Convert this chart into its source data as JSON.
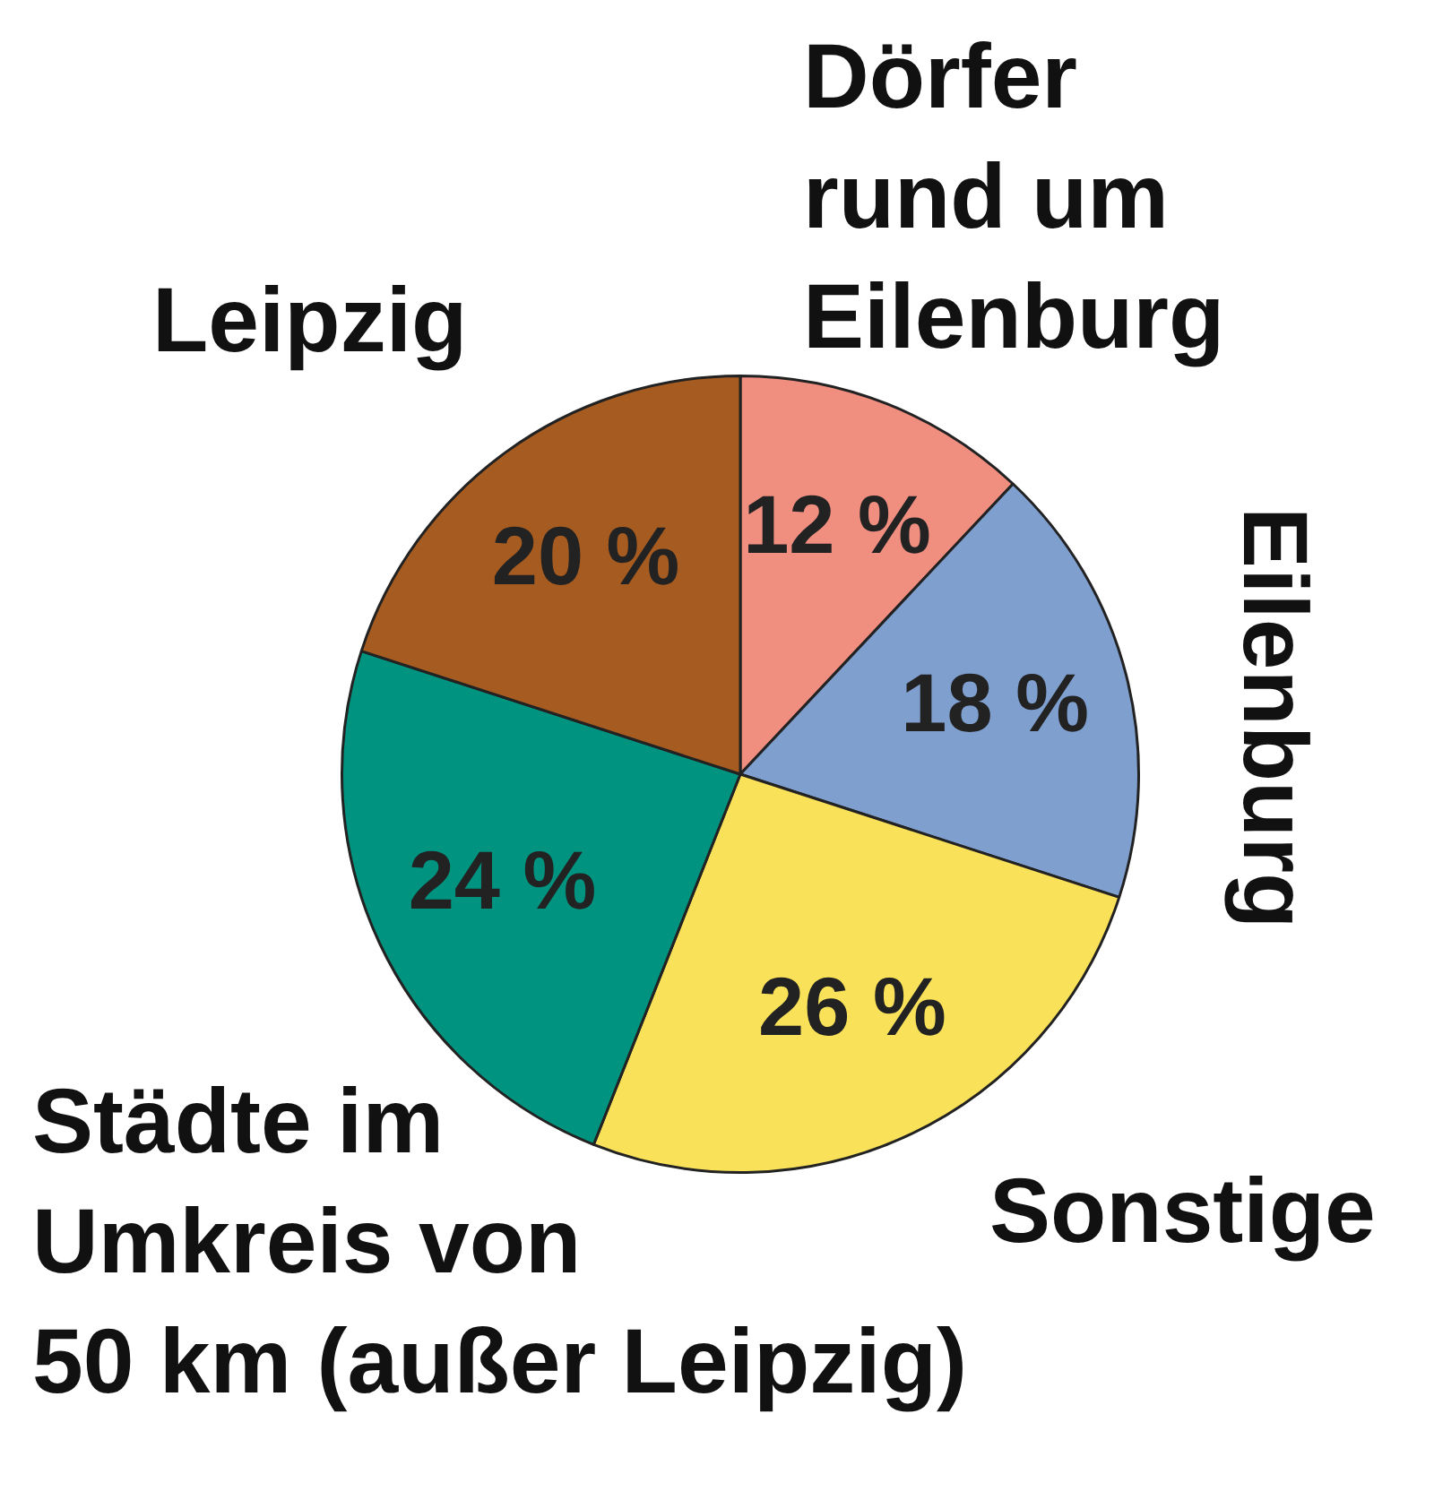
{
  "chart_data": {
    "type": "pie",
    "categories": [
      "Dörfer rund um Eilenburg",
      "Eilenburg",
      "Sonstige",
      "Städte im Umkreis von 50 km (außer Leipzig)",
      "Leipzig"
    ],
    "values": [
      12,
      18,
      26,
      24,
      20
    ],
    "colors": [
      "#f08e80",
      "#7f9fcf",
      "#f9e15a",
      "#009480",
      "#a65b20"
    ],
    "value_labels": [
      "12 %",
      "18 %",
      "26 %",
      "24 %",
      "20 %"
    ]
  }
}
